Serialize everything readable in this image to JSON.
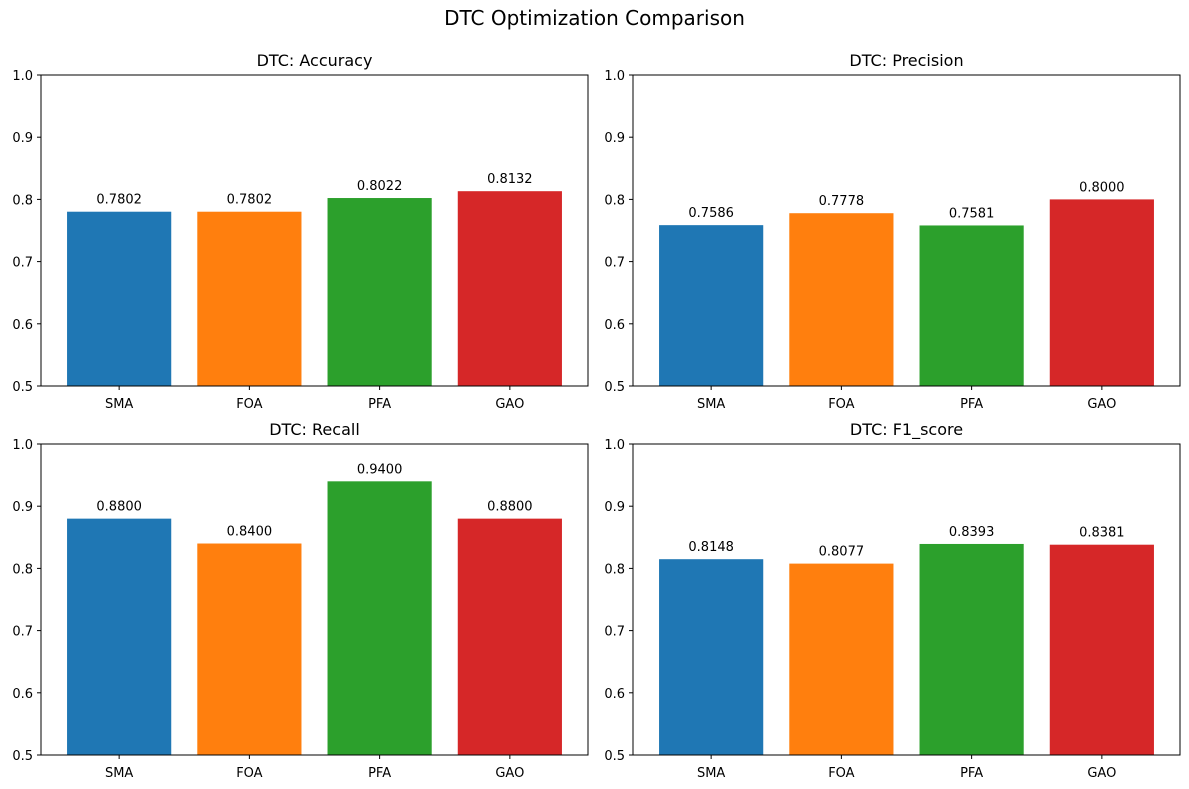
{
  "figure": {
    "title": "DTC Optimization Comparison"
  },
  "colors": {
    "SMA": "#1f77b4",
    "FOA": "#ff7f0e",
    "PFA": "#2ca02c",
    "GAO": "#d62728"
  },
  "chart_data": [
    {
      "type": "bar",
      "title": "DTC: Accuracy",
      "categories": [
        "SMA",
        "FOA",
        "PFA",
        "GAO"
      ],
      "values": [
        0.7802,
        0.7802,
        0.8022,
        0.8132
      ],
      "data_labels": [
        "0.7802",
        "0.7802",
        "0.8022",
        "0.8132"
      ],
      "ylim": [
        0.5,
        1.0
      ],
      "yticks": [
        "0.5",
        "0.6",
        "0.7",
        "0.8",
        "0.9",
        "1.0"
      ],
      "xlabel": "",
      "ylabel": "",
      "grid": false
    },
    {
      "type": "bar",
      "title": "DTC: Precision",
      "categories": [
        "SMA",
        "FOA",
        "PFA",
        "GAO"
      ],
      "values": [
        0.7586,
        0.7778,
        0.7581,
        0.8
      ],
      "data_labels": [
        "0.7586",
        "0.7778",
        "0.7581",
        "0.8000"
      ],
      "ylim": [
        0.5,
        1.0
      ],
      "yticks": [
        "0.5",
        "0.6",
        "0.7",
        "0.8",
        "0.9",
        "1.0"
      ],
      "xlabel": "",
      "ylabel": "",
      "grid": false
    },
    {
      "type": "bar",
      "title": "DTC: Recall",
      "categories": [
        "SMA",
        "FOA",
        "PFA",
        "GAO"
      ],
      "values": [
        0.88,
        0.84,
        0.94,
        0.88
      ],
      "data_labels": [
        "0.8800",
        "0.8400",
        "0.9400",
        "0.8800"
      ],
      "ylim": [
        0.5,
        1.0
      ],
      "yticks": [
        "0.5",
        "0.6",
        "0.7",
        "0.8",
        "0.9",
        "1.0"
      ],
      "xlabel": "",
      "ylabel": "",
      "grid": false
    },
    {
      "type": "bar",
      "title": "DTC: F1_score",
      "categories": [
        "SMA",
        "FOA",
        "PFA",
        "GAO"
      ],
      "values": [
        0.8148,
        0.8077,
        0.8393,
        0.8381
      ],
      "data_labels": [
        "0.8148",
        "0.8077",
        "0.8393",
        "0.8381"
      ],
      "ylim": [
        0.5,
        1.0
      ],
      "yticks": [
        "0.5",
        "0.6",
        "0.7",
        "0.8",
        "0.9",
        "1.0"
      ],
      "xlabel": "",
      "ylabel": "",
      "grid": false
    }
  ]
}
